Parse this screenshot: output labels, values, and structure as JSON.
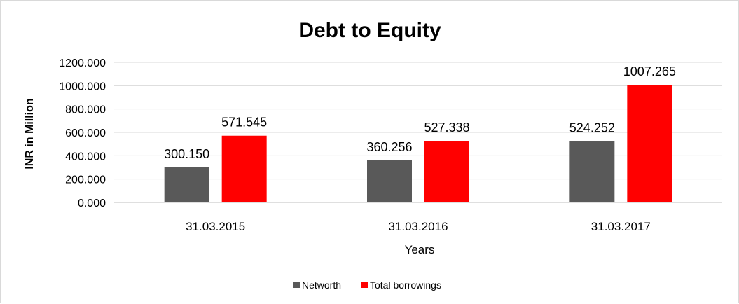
{
  "chart_data": {
    "type": "bar",
    "title": "Debt to Equity",
    "xlabel": "Years",
    "ylabel": "INR in Million",
    "categories": [
      "31.03.2015",
      "31.03.2016",
      "31.03.2017"
    ],
    "series": [
      {
        "name": "Networth",
        "color": "#595959",
        "values": [
          300.15,
          360.256,
          524.252
        ],
        "labels": [
          "300.150",
          "360.256",
          "524.252"
        ]
      },
      {
        "name": "Total borrowings",
        "color": "#ff0000",
        "values": [
          571.545,
          527.338,
          1007.265
        ],
        "labels": [
          "571.545",
          "527.338",
          "1007.265"
        ]
      }
    ],
    "ylim": [
      0,
      1200
    ],
    "yticks": [
      0,
      200,
      400,
      600,
      800,
      1000,
      1200
    ],
    "ytick_labels": [
      "0.000",
      "200.000",
      "400.000",
      "600.000",
      "800.000",
      "1000.000",
      "1200.000"
    ],
    "grid": true,
    "legend_position": "bottom"
  }
}
